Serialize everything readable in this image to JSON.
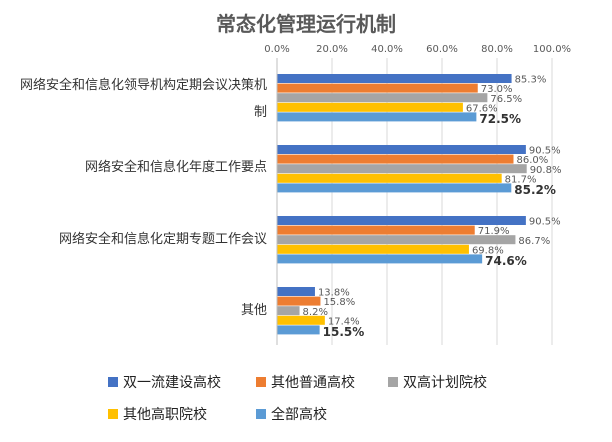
{
  "chart_data": {
    "type": "bar",
    "orientation": "horizontal",
    "title": "常态化管理运行机制",
    "xlim": [
      0,
      100
    ],
    "x_ticks": [
      "0.0%",
      "20.0%",
      "40.0%",
      "60.0%",
      "80.0%",
      "100.0%"
    ],
    "grid": true,
    "legend_placement": "bottom",
    "categories": [
      "网络安全和信息化领导机构定期会议决策机制",
      "网络安全和信息化年度工作要点",
      "网络安全和信息化定期专题工作会议",
      "其他"
    ],
    "series": [
      {
        "name": "双一流建设高校",
        "color": "#4472C4",
        "values": [
          85.3,
          90.5,
          90.5,
          13.8
        ],
        "labels": [
          "85.3%",
          "90.5%",
          "90.5%",
          "13.8%"
        ]
      },
      {
        "name": "其他普通高校",
        "color": "#ED7D31",
        "values": [
          73.0,
          86.0,
          71.9,
          15.8
        ],
        "labels": [
          "73.0%",
          "86.0%",
          "71.9%",
          "15.8%"
        ]
      },
      {
        "name": "双高计划院校",
        "color": "#A5A5A5",
        "values": [
          76.5,
          90.8,
          86.7,
          8.2
        ],
        "labels": [
          "76.5%",
          "90.8%",
          "86.7%",
          "8.2%"
        ]
      },
      {
        "name": "其他高职院校",
        "color": "#FFC000",
        "values": [
          67.6,
          81.7,
          69.8,
          17.4
        ],
        "labels": [
          "67.6%",
          "81.7%",
          "69.8%",
          "17.4%"
        ]
      },
      {
        "name": "全部高校",
        "color": "#5B9BD5",
        "values": [
          72.5,
          85.2,
          74.6,
          15.5
        ],
        "labels": [
          "72.5%",
          "85.2%",
          "74.6%",
          "15.5%"
        ],
        "bold_labels": true
      }
    ]
  }
}
